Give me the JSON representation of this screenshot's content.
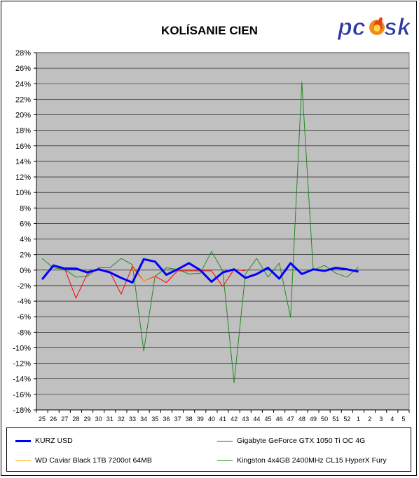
{
  "chart_data": {
    "type": "line",
    "title": "KOLÍSANIE CIEN",
    "xlabel": "",
    "ylabel": "",
    "categories": [
      "25",
      "26",
      "27",
      "28",
      "29",
      "30",
      "31",
      "32",
      "33",
      "34",
      "35",
      "36",
      "37",
      "38",
      "39",
      "40",
      "41",
      "42",
      "43",
      "44",
      "45",
      "46",
      "47",
      "48",
      "49",
      "50",
      "51",
      "52",
      "1",
      "2",
      "3",
      "4",
      "5"
    ],
    "ylim": [
      -18,
      28
    ],
    "ytick_step": 2,
    "grid": true,
    "legend_position": "bottom",
    "series": [
      {
        "name": "KURZ USD",
        "color": "#0000ff",
        "width": 3,
        "values": [
          -1.2,
          0.6,
          0.2,
          0.2,
          -0.3,
          0.1,
          -0.3,
          -1.0,
          -1.6,
          1.4,
          1.1,
          -0.6,
          0.1,
          0.9,
          0.0,
          -1.5,
          -0.3,
          0.1,
          -1.0,
          -0.5,
          0.3,
          -1.1,
          0.9,
          -0.5,
          0.1,
          -0.1,
          0.3,
          0.1,
          -0.2,
          null,
          null,
          null,
          null
        ]
      },
      {
        "name": "Gigabyte GeForce GTX 1050 Ti OC 4G",
        "color": "#ff0000",
        "width": 1,
        "values": [
          null,
          null,
          0.2,
          -3.6,
          -0.5,
          0.2,
          -0.2,
          -3.1,
          0.5,
          -1.4,
          -0.8,
          -1.6,
          -0.1,
          -0.1,
          -0.1,
          -0.1,
          -2.1,
          0.1,
          -0.1,
          null,
          null,
          null,
          null,
          null,
          null,
          null,
          null,
          null,
          null,
          null,
          null,
          null,
          null
        ]
      },
      {
        "name": "WD Caviar Black 1TB 7200ot 64MB",
        "color": "#ffa500",
        "width": 1,
        "values": [
          null,
          null,
          null,
          null,
          null,
          null,
          null,
          null,
          0.2,
          -1.4,
          -0.9,
          null,
          null,
          null,
          null,
          null,
          null,
          null,
          null,
          null,
          null,
          null,
          null,
          null,
          null,
          null,
          null,
          null,
          null,
          null,
          null,
          null,
          null
        ]
      },
      {
        "name": "Kingston 4x4GB 2400MHz CL15 HyperX Fury",
        "color": "#228b22",
        "width": 1,
        "values": [
          1.5,
          0.3,
          0.1,
          -0.9,
          -0.8,
          0.3,
          0.3,
          1.5,
          0.7,
          -10.4,
          -0.8,
          0.3,
          0.1,
          -0.5,
          -0.4,
          2.4,
          -0.1,
          -14.5,
          -0.5,
          1.5,
          -0.9,
          0.9,
          -6.1,
          24.2,
          0.0,
          0.6,
          -0.4,
          -0.9,
          0.4,
          null,
          null,
          null,
          null
        ]
      }
    ]
  },
  "logo": {
    "text_pc": "pc",
    "text_sk": "sk",
    "color": "#2a3aa0"
  }
}
